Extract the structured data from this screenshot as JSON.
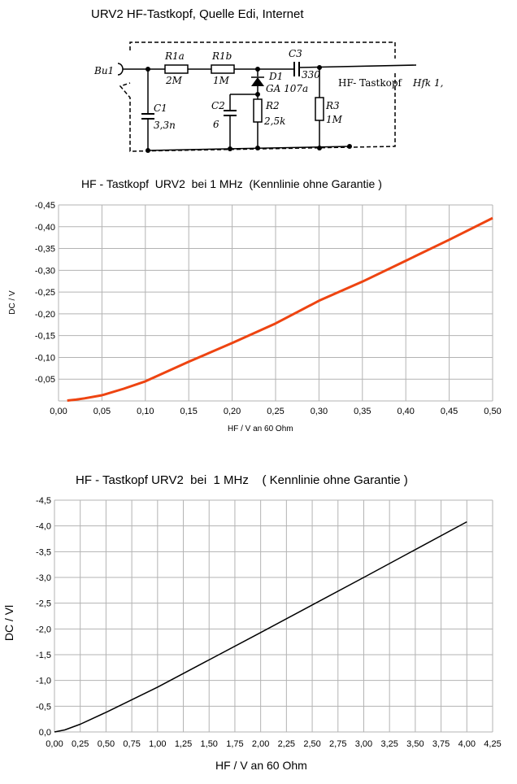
{
  "header": {
    "title": "URV2 HF-Tastkopf, Quelle  Edi, Internet"
  },
  "schematic": {
    "connector": "Bu1",
    "r1a": {
      "name": "R1a",
      "value": "2M"
    },
    "r1b": {
      "name": "R1b",
      "value": "1M"
    },
    "c3": {
      "name": "C3",
      "value": "330"
    },
    "c1": {
      "name": "C1",
      "value": "3,3n"
    },
    "d1": {
      "name": "D1",
      "value": "GA 107a"
    },
    "c2": {
      "name": "C2",
      "value": "6"
    },
    "r2": {
      "name": "R2",
      "value": "2,5k"
    },
    "r3": {
      "name": "R3",
      "value": "1M"
    },
    "label": "HF- Tastkopf",
    "label_italic": "Hfk 1,"
  },
  "colors": {
    "chart1_line": "#ee4411",
    "chart2_line": "#000000",
    "grid": "#b3b3b3"
  },
  "chart_data": [
    {
      "type": "line",
      "title": "HF - Tastkopf  URV2  bei 1 MHz  (Kennlinie ohne Garantie )",
      "xlabel": "HF / V  an 60 Ohm",
      "ylabel": "DC / V",
      "xlim": [
        0,
        0.5
      ],
      "ylim": [
        0,
        -0.45
      ],
      "x_ticks": [
        "0,00",
        "0,05",
        "0,10",
        "0,15",
        "0,20",
        "0,25",
        "0,30",
        "0,35",
        "0,40",
        "0,45",
        "0,50"
      ],
      "y_ticks": [
        "-0,45",
        "-0,40",
        "-0,35",
        "-0,30",
        "-0,25",
        "-0,20",
        "-0,15",
        "-0,10",
        "-0,05"
      ],
      "grid": true,
      "series": [
        {
          "x": [
            0.01,
            0.02,
            0.03,
            0.05,
            0.075,
            0.1,
            0.15,
            0.2,
            0.25,
            0.3,
            0.35,
            0.4,
            0.45,
            0.5
          ],
          "y": [
            -0.001,
            -0.003,
            -0.006,
            -0.013,
            -0.028,
            -0.045,
            -0.09,
            -0.133,
            -0.178,
            -0.23,
            -0.274,
            -0.322,
            -0.37,
            -0.42
          ]
        }
      ]
    },
    {
      "type": "line",
      "title": "HF - Tastkopf URV2  bei  1 MHz    ( Kennlinie ohne Garantie )",
      "xlabel": "HF / V  an  60 Ohm",
      "ylabel": "DC / Vl",
      "xlim": [
        0,
        4.25
      ],
      "ylim": [
        0,
        -4.5
      ],
      "x_ticks": [
        "0,00",
        "0,25",
        "0,50",
        "0,75",
        "1,00",
        "1,25",
        "1,50",
        "1,75",
        "2,00",
        "2,25",
        "2,50",
        "2,75",
        "3,00",
        "3,25",
        "3,50",
        "3,75",
        "4,00",
        "4,25"
      ],
      "y_ticks": [
        "-4,5",
        "-4,0",
        "-3,5",
        "-3,0",
        "-2,5",
        "-2,0",
        "-1,5",
        "-1,0",
        "-0,5",
        "0,0"
      ],
      "grid": true,
      "series": [
        {
          "x": [
            0,
            0.1,
            0.25,
            0.5,
            1.0,
            2.0,
            3.0,
            4.0
          ],
          "y": [
            0,
            -0.04,
            -0.15,
            -0.38,
            -0.87,
            -1.93,
            -3.0,
            -4.08
          ]
        }
      ]
    }
  ]
}
